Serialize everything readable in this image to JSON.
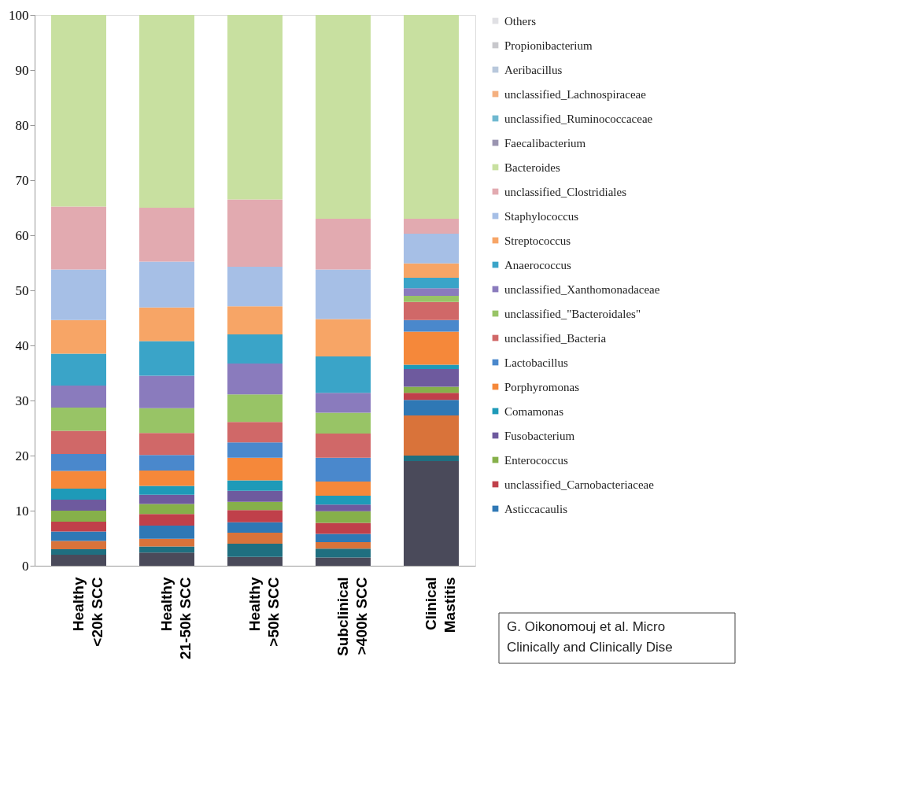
{
  "chart_data": {
    "type": "bar",
    "stacked": true,
    "categories": [
      "Healthy\n<20k SCC",
      "Healthy\n21-50k SCC",
      "Healthy\n>50k SCC",
      "Subclinical\n>400k SCC",
      "Clinical\nMastitis"
    ],
    "series": [
      {
        "color": "#4a4a5a",
        "values": [
          2.0,
          2.4,
          1.6,
          1.5,
          19.0
        ]
      },
      {
        "color": "#1f6f80",
        "values": [
          1.0,
          1.1,
          2.4,
          1.6,
          1.0
        ]
      },
      {
        "color": "#d9733a",
        "values": [
          1.5,
          1.4,
          2.0,
          1.2,
          7.3
        ]
      },
      {
        "name": "Asticcacaulis",
        "color": "#2f78b5",
        "values": [
          1.7,
          2.4,
          1.9,
          1.5,
          2.8
        ]
      },
      {
        "name": "unclassified_Carnobacteriaceae",
        "color": "#c0404a",
        "values": [
          1.8,
          2.1,
          2.2,
          2.0,
          1.3
        ]
      },
      {
        "name": "Enterococcus",
        "color": "#86b04a",
        "values": [
          2.0,
          1.8,
          1.5,
          2.1,
          1.1
        ]
      },
      {
        "name": "Fusobacterium",
        "color": "#6e5a9e",
        "values": [
          2.0,
          1.7,
          2.0,
          1.2,
          3.2
        ]
      },
      {
        "name": "Comamonas",
        "color": "#1e9ab8",
        "values": [
          2.0,
          1.6,
          1.9,
          1.6,
          0.8
        ]
      },
      {
        "name": "Porphyromonas",
        "color": "#f5883a",
        "values": [
          3.2,
          2.8,
          4.1,
          2.6,
          6.0
        ]
      },
      {
        "name": "Lactobacillus",
        "color": "#4a88cc",
        "values": [
          3.1,
          2.8,
          2.8,
          4.3,
          2.1
        ]
      },
      {
        "name": "unclassified_Bacteria",
        "color": "#d06868",
        "values": [
          4.2,
          4.0,
          3.7,
          4.4,
          3.3
        ]
      },
      {
        "name": "unclassified_\"Bacteroidales\"",
        "color": "#98c466",
        "values": [
          4.2,
          4.5,
          5.0,
          3.8,
          1.1
        ]
      },
      {
        "name": "unclassified_Xanthomonadaceae",
        "color": "#8a7bbd",
        "values": [
          4.0,
          5.9,
          5.6,
          3.6,
          1.4
        ]
      },
      {
        "name": "Anaerococcus",
        "color": "#3aa4c8",
        "values": [
          5.8,
          6.3,
          5.3,
          6.6,
          1.9
        ]
      },
      {
        "name": "Streptococcus",
        "color": "#f7a566",
        "values": [
          6.1,
          6.1,
          5.1,
          6.8,
          2.6
        ]
      },
      {
        "name": "Staphylococcus",
        "color": "#a6bfe6",
        "values": [
          9.2,
          8.3,
          7.2,
          9.0,
          5.4
        ]
      },
      {
        "name": "unclassified_Clostridiales",
        "color": "#e2aab0",
        "values": [
          11.4,
          9.8,
          12.2,
          9.2,
          2.7
        ]
      },
      {
        "name": "Bacteroides",
        "color": "#c8e0a0",
        "values": [
          34.8,
          35.0,
          33.5,
          37.0,
          37.0
        ]
      },
      {
        "name": "Faecalibacterium",
        "color": "#9a94b0",
        "values": [
          null,
          null,
          null,
          null,
          null
        ]
      },
      {
        "name": "unclassified_Ruminococcaceae",
        "color": "#6fb8d0",
        "values": [
          null,
          null,
          null,
          null,
          null
        ]
      },
      {
        "name": "unclassified_Lachnospiraceae",
        "color": "#f4b080",
        "values": [
          null,
          null,
          null,
          null,
          null
        ]
      },
      {
        "name": "Aeribacillus",
        "color": "#b8c8dc",
        "values": [
          null,
          null,
          null,
          null,
          null
        ]
      },
      {
        "name": "Propionibacterium",
        "color": "#c8c8cc",
        "values": [
          null,
          null,
          null,
          null,
          null
        ]
      },
      {
        "name": "Others",
        "color": "#e0e0e4",
        "values": [
          null,
          null,
          null,
          null,
          null
        ]
      }
    ],
    "ylim": [
      0,
      100
    ],
    "yticks": [
      0,
      10,
      20,
      30,
      40,
      50,
      60,
      70,
      80,
      90,
      100
    ],
    "grid": false,
    "legend": "right",
    "annotations": [
      "G. Oikonomouj et al. Micro",
      "Clinically and Clinically Dise"
    ]
  }
}
